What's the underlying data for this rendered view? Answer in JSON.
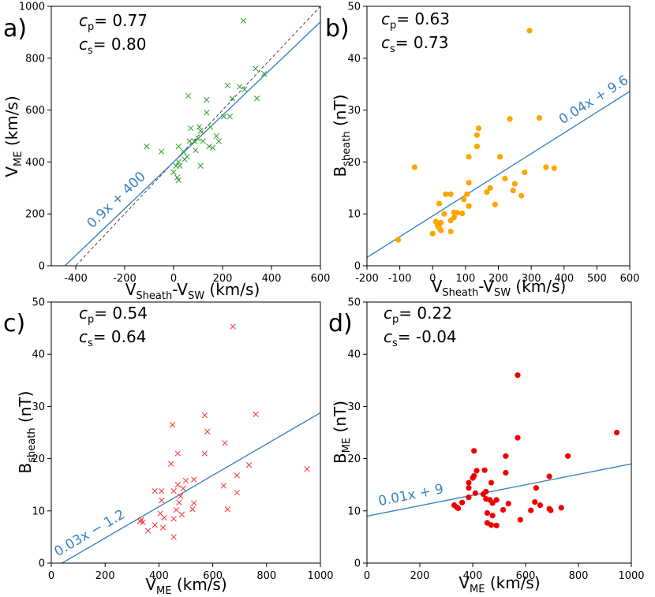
{
  "chart_data": [
    {
      "panel_label": "a)",
      "type": "scatter",
      "xlabel_main": "V",
      "xlabel_sub1": "Sheath",
      "xlabel_mid": "-V",
      "xlabel_sub2": "SW",
      "xlabel_unit": " (km/s)",
      "ylabel_main": "V",
      "ylabel_sub": "ME",
      "ylabel_unit": " (km/s)",
      "xlim": [
        -500,
        600
      ],
      "ylim": [
        0,
        1000
      ],
      "xticks": [
        -400,
        -200,
        0,
        200,
        400,
        600
      ],
      "yticks": [
        0,
        200,
        400,
        600,
        800,
        1000
      ],
      "marker": "x",
      "color": "#2ca02c",
      "cp_label": "p",
      "cp_value": "= 0.77",
      "cs_label": "s",
      "cs_value": "= 0.80",
      "fit": {
        "slope": 0.9,
        "intercept": 400,
        "label": "0.9x + 400"
      },
      "reference_line": "y = x + 400 (dashed)",
      "points": [
        {
          "x": 285,
          "y": 945
        },
        {
          "x": 335,
          "y": 760
        },
        {
          "x": 370,
          "y": 740
        },
        {
          "x": 60,
          "y": 655
        },
        {
          "x": 135,
          "y": 640
        },
        {
          "x": 240,
          "y": 645
        },
        {
          "x": 340,
          "y": 645
        },
        {
          "x": 220,
          "y": 695
        },
        {
          "x": 270,
          "y": 690
        },
        {
          "x": 290,
          "y": 680
        },
        {
          "x": 135,
          "y": 590
        },
        {
          "x": 205,
          "y": 575
        },
        {
          "x": 230,
          "y": 575
        },
        {
          "x": 70,
          "y": 530
        },
        {
          "x": 105,
          "y": 535
        },
        {
          "x": 110,
          "y": 520
        },
        {
          "x": 150,
          "y": 535
        },
        {
          "x": 175,
          "y": 500
        },
        {
          "x": 85,
          "y": 480
        },
        {
          "x": 65,
          "y": 480
        },
        {
          "x": 100,
          "y": 490
        },
        {
          "x": 120,
          "y": 480
        },
        {
          "x": 185,
          "y": 480
        },
        {
          "x": 145,
          "y": 460
        },
        {
          "x": 20,
          "y": 460
        },
        {
          "x": -110,
          "y": 460
        },
        {
          "x": -50,
          "y": 440
        },
        {
          "x": 40,
          "y": 440
        },
        {
          "x": 90,
          "y": 445
        },
        {
          "x": 160,
          "y": 455
        },
        {
          "x": 55,
          "y": 420
        },
        {
          "x": 45,
          "y": 410
        },
        {
          "x": 20,
          "y": 400
        },
        {
          "x": 10,
          "y": 385
        },
        {
          "x": 25,
          "y": 385
        },
        {
          "x": 110,
          "y": 385
        },
        {
          "x": 0,
          "y": 360
        },
        {
          "x": 15,
          "y": 340
        },
        {
          "x": 20,
          "y": 330
        }
      ]
    },
    {
      "panel_label": "b)",
      "type": "scatter",
      "xlabel_main": "V",
      "xlabel_sub1": "Sheath",
      "xlabel_mid": "-V",
      "xlabel_sub2": "SW",
      "xlabel_unit": " (km/s)",
      "ylabel_main": "B",
      "ylabel_sub": "sheath",
      "ylabel_unit": " (nT)",
      "xlim": [
        -200,
        600
      ],
      "ylim": [
        0,
        50
      ],
      "xticks": [
        -200,
        -100,
        0,
        100,
        200,
        300,
        400,
        500,
        600
      ],
      "yticks": [
        0,
        10,
        20,
        30,
        40,
        50
      ],
      "marker": "o",
      "color": "#ffa500",
      "cp_label": "p",
      "cp_value": "= 0.63",
      "cs_label": "s",
      "cs_value": "= 0.73",
      "fit": {
        "slope": 0.04,
        "intercept": 9.6,
        "label": "0.04x + 9.6"
      },
      "points": [
        {
          "x": 295,
          "y": 45.3
        },
        {
          "x": 235,
          "y": 28.3
        },
        {
          "x": 325,
          "y": 28.5
        },
        {
          "x": 140,
          "y": 26.5
        },
        {
          "x": 135,
          "y": 25.2
        },
        {
          "x": 135,
          "y": 23
        },
        {
          "x": 205,
          "y": 21
        },
        {
          "x": 110,
          "y": 21
        },
        {
          "x": -55,
          "y": 19
        },
        {
          "x": 345,
          "y": 19
        },
        {
          "x": 370,
          "y": 18.8
        },
        {
          "x": 280,
          "y": 18
        },
        {
          "x": 220,
          "y": 16.8
        },
        {
          "x": 110,
          "y": 16
        },
        {
          "x": 250,
          "y": 15.8
        },
        {
          "x": 175,
          "y": 15
        },
        {
          "x": 245,
          "y": 14.5
        },
        {
          "x": 165,
          "y": 14.2
        },
        {
          "x": 40,
          "y": 13.8
        },
        {
          "x": 55,
          "y": 13.8
        },
        {
          "x": 105,
          "y": 13.8
        },
        {
          "x": 270,
          "y": 13.5
        },
        {
          "x": 95,
          "y": 12.8
        },
        {
          "x": 20,
          "y": 12
        },
        {
          "x": 190,
          "y": 11.8
        },
        {
          "x": 110,
          "y": 11.5
        },
        {
          "x": 65,
          "y": 10.3
        },
        {
          "x": 75,
          "y": 10.2
        },
        {
          "x": 90,
          "y": 10.1
        },
        {
          "x": 35,
          "y": 10
        },
        {
          "x": 65,
          "y": 9.3
        },
        {
          "x": 55,
          "y": 8.7
        },
        {
          "x": 10,
          "y": 8.5
        },
        {
          "x": 25,
          "y": 8.3
        },
        {
          "x": 15,
          "y": 7.8
        },
        {
          "x": 20,
          "y": 7.3
        },
        {
          "x": 25,
          "y": 6.8
        },
        {
          "x": 55,
          "y": 6.6
        },
        {
          "x": 0,
          "y": 6.2
        },
        {
          "x": -105,
          "y": 5
        }
      ]
    },
    {
      "panel_label": "c)",
      "type": "scatter",
      "xlabel_main": "V",
      "xlabel_sub1": "ME",
      "xlabel_mid": "",
      "xlabel_sub2": "",
      "xlabel_unit": " (km/s)",
      "ylabel_main": "B",
      "ylabel_sub": "sheath",
      "ylabel_unit": " (nT)",
      "xlim": [
        0,
        1000
      ],
      "ylim": [
        0,
        50
      ],
      "xticks": [
        0,
        200,
        400,
        600,
        800,
        1000
      ],
      "yticks": [
        0,
        10,
        20,
        30,
        40,
        50
      ],
      "marker": "x",
      "color": "#ff3030",
      "cp_label": "p",
      "cp_value": "= 0.54",
      "cs_label": "s",
      "cs_value": "= 0.64",
      "fit": {
        "slope": 0.03,
        "intercept": -1.2,
        "label": "0.03x − 1.2"
      },
      "points": [
        {
          "x": 675,
          "y": 45.3
        },
        {
          "x": 570,
          "y": 28.3
        },
        {
          "x": 760,
          "y": 28.5
        },
        {
          "x": 450,
          "y": 26.5
        },
        {
          "x": 580,
          "y": 25.2
        },
        {
          "x": 645,
          "y": 23
        },
        {
          "x": 470,
          "y": 21
        },
        {
          "x": 570,
          "y": 21
        },
        {
          "x": 445,
          "y": 19
        },
        {
          "x": 735,
          "y": 18.8
        },
        {
          "x": 950,
          "y": 18
        },
        {
          "x": 690,
          "y": 16.8
        },
        {
          "x": 530,
          "y": 16
        },
        {
          "x": 500,
          "y": 15.8
        },
        {
          "x": 640,
          "y": 14.8
        },
        {
          "x": 470,
          "y": 15
        },
        {
          "x": 490,
          "y": 14.3
        },
        {
          "x": 385,
          "y": 13.8
        },
        {
          "x": 410,
          "y": 13.8
        },
        {
          "x": 455,
          "y": 13.8
        },
        {
          "x": 690,
          "y": 13.5
        },
        {
          "x": 480,
          "y": 12.8
        },
        {
          "x": 410,
          "y": 12
        },
        {
          "x": 530,
          "y": 11.5
        },
        {
          "x": 475,
          "y": 11.6
        },
        {
          "x": 525,
          "y": 10.3
        },
        {
          "x": 655,
          "y": 10.3
        },
        {
          "x": 465,
          "y": 10.2
        },
        {
          "x": 405,
          "y": 9.5
        },
        {
          "x": 485,
          "y": 9.3
        },
        {
          "x": 420,
          "y": 8.7
        },
        {
          "x": 455,
          "y": 8.5
        },
        {
          "x": 335,
          "y": 8.3
        },
        {
          "x": 340,
          "y": 7.8
        },
        {
          "x": 330,
          "y": 8.0
        },
        {
          "x": 385,
          "y": 7.3
        },
        {
          "x": 415,
          "y": 6.8
        },
        {
          "x": 360,
          "y": 6.2
        },
        {
          "x": 455,
          "y": 5
        }
      ]
    },
    {
      "panel_label": "d)",
      "type": "scatter",
      "xlabel_main": "V",
      "xlabel_sub1": "ME",
      "xlabel_mid": "",
      "xlabel_sub2": "",
      "xlabel_unit": " (km/s)",
      "ylabel_main": "B",
      "ylabel_sub": "ME",
      "ylabel_unit": " (nT)",
      "xlim": [
        0,
        1000
      ],
      "ylim": [
        0,
        50
      ],
      "xticks": [
        0,
        200,
        400,
        600,
        800,
        1000
      ],
      "yticks": [
        0,
        10,
        20,
        30,
        40,
        50
      ],
      "marker": "o",
      "color": "#ee0000",
      "cp_label": "p",
      "cp_value": "= 0.22",
      "cs_label": "s",
      "cs_value": "= -0.04",
      "fit": {
        "slope": 0.01,
        "intercept": 9,
        "label": "0.01x + 9"
      },
      "points": [
        {
          "x": 570,
          "y": 36
        },
        {
          "x": 945,
          "y": 25
        },
        {
          "x": 570,
          "y": 24
        },
        {
          "x": 405,
          "y": 21.5
        },
        {
          "x": 760,
          "y": 20.5
        },
        {
          "x": 525,
          "y": 20.5
        },
        {
          "x": 445,
          "y": 17.8
        },
        {
          "x": 415,
          "y": 17.7
        },
        {
          "x": 525,
          "y": 17.3
        },
        {
          "x": 405,
          "y": 16.7
        },
        {
          "x": 400,
          "y": 16.3
        },
        {
          "x": 690,
          "y": 16.6
        },
        {
          "x": 385,
          "y": 15.4
        },
        {
          "x": 470,
          "y": 15.4
        },
        {
          "x": 385,
          "y": 14.4
        },
        {
          "x": 640,
          "y": 14.4
        },
        {
          "x": 450,
          "y": 13.7
        },
        {
          "x": 410,
          "y": 13.4
        },
        {
          "x": 440,
          "y": 13.2
        },
        {
          "x": 385,
          "y": 12.6
        },
        {
          "x": 450,
          "y": 12.3
        },
        {
          "x": 465,
          "y": 12.1
        },
        {
          "x": 490,
          "y": 12.1
        },
        {
          "x": 635,
          "y": 11.7
        },
        {
          "x": 360,
          "y": 11.6
        },
        {
          "x": 475,
          "y": 11.5
        },
        {
          "x": 535,
          "y": 11.4
        },
        {
          "x": 655,
          "y": 11.1
        },
        {
          "x": 330,
          "y": 11.1
        },
        {
          "x": 340,
          "y": 10.7
        },
        {
          "x": 345,
          "y": 10.5
        },
        {
          "x": 690,
          "y": 10.4
        },
        {
          "x": 735,
          "y": 10.6
        },
        {
          "x": 695,
          "y": 10.1
        },
        {
          "x": 620,
          "y": 10.1
        },
        {
          "x": 515,
          "y": 10.2
        },
        {
          "x": 475,
          "y": 9.1
        },
        {
          "x": 455,
          "y": 9.6
        },
        {
          "x": 580,
          "y": 8.3
        },
        {
          "x": 455,
          "y": 7.7
        },
        {
          "x": 470,
          "y": 7.3
        },
        {
          "x": 490,
          "y": 7.2
        }
      ]
    }
  ]
}
